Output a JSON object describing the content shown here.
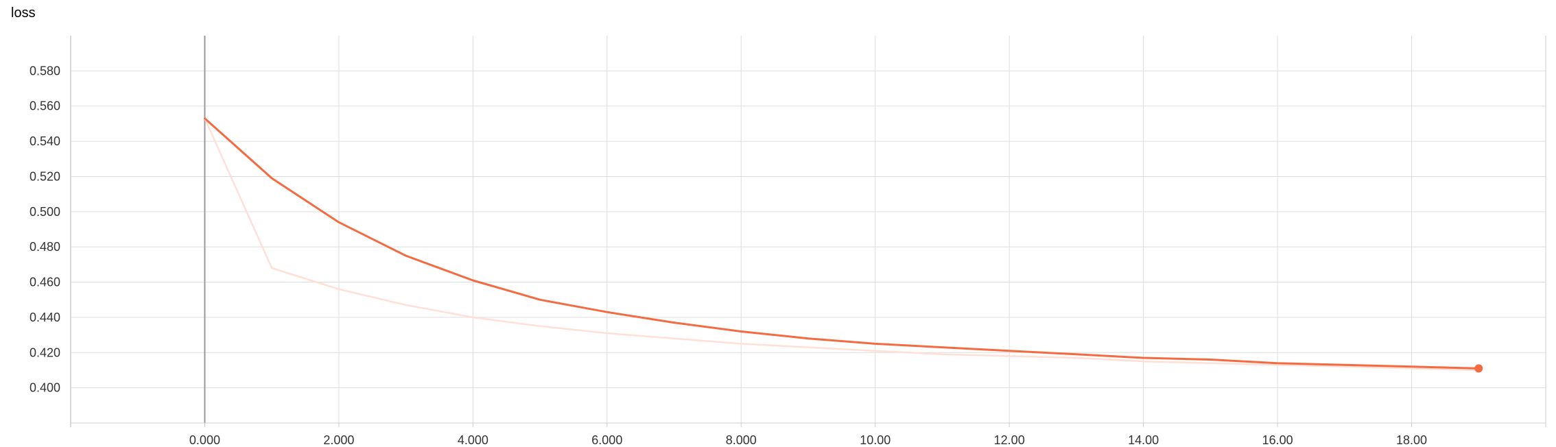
{
  "chart_data": {
    "type": "line",
    "title": "loss",
    "xlabel": "",
    "ylabel": "",
    "xlim": [
      -2,
      20
    ],
    "ylim": [
      0.38,
      0.6
    ],
    "x_ticks": [
      0,
      2,
      4,
      6,
      8,
      10,
      12,
      14,
      16,
      18
    ],
    "x_tick_labels": [
      "0.000",
      "2.000",
      "4.000",
      "6.000",
      "8.000",
      "10.00",
      "12.00",
      "14.00",
      "16.00",
      "18.00"
    ],
    "y_ticks": [
      0.4,
      0.42,
      0.44,
      0.46,
      0.48,
      0.5,
      0.52,
      0.54,
      0.56,
      0.58
    ],
    "y_tick_labels": [
      "0.400",
      "0.420",
      "0.440",
      "0.460",
      "0.480",
      "0.500",
      "0.520",
      "0.540",
      "0.560",
      "0.580"
    ],
    "grid": true,
    "series": [
      {
        "role": "raw",
        "color": "#ffdfd6",
        "x": [
          0,
          1,
          2,
          3,
          4,
          5,
          6,
          7,
          8,
          9,
          10,
          11,
          12,
          13,
          14,
          15,
          16,
          17,
          18,
          19
        ],
        "y": [
          0.553,
          0.468,
          0.456,
          0.447,
          0.44,
          0.435,
          0.431,
          0.428,
          0.425,
          0.423,
          0.421,
          0.419,
          0.418,
          0.417,
          0.415,
          0.414,
          0.413,
          0.412,
          0.411,
          0.41
        ]
      },
      {
        "role": "smoothed",
        "color": "#f46b41",
        "x": [
          0,
          1,
          2,
          3,
          4,
          5,
          6,
          7,
          8,
          9,
          10,
          11,
          12,
          13,
          14,
          15,
          16,
          17,
          18,
          19
        ],
        "y": [
          0.553,
          0.519,
          0.494,
          0.475,
          0.461,
          0.45,
          0.443,
          0.437,
          0.432,
          0.428,
          0.425,
          0.423,
          0.421,
          0.419,
          0.417,
          0.416,
          0.414,
          0.413,
          0.412,
          0.411
        ]
      }
    ],
    "last_point_marker": true
  },
  "colors": {
    "grid": "#dddddd",
    "zero_line": "#999999",
    "axis": "#cccccc",
    "tick_text": "#333333"
  }
}
